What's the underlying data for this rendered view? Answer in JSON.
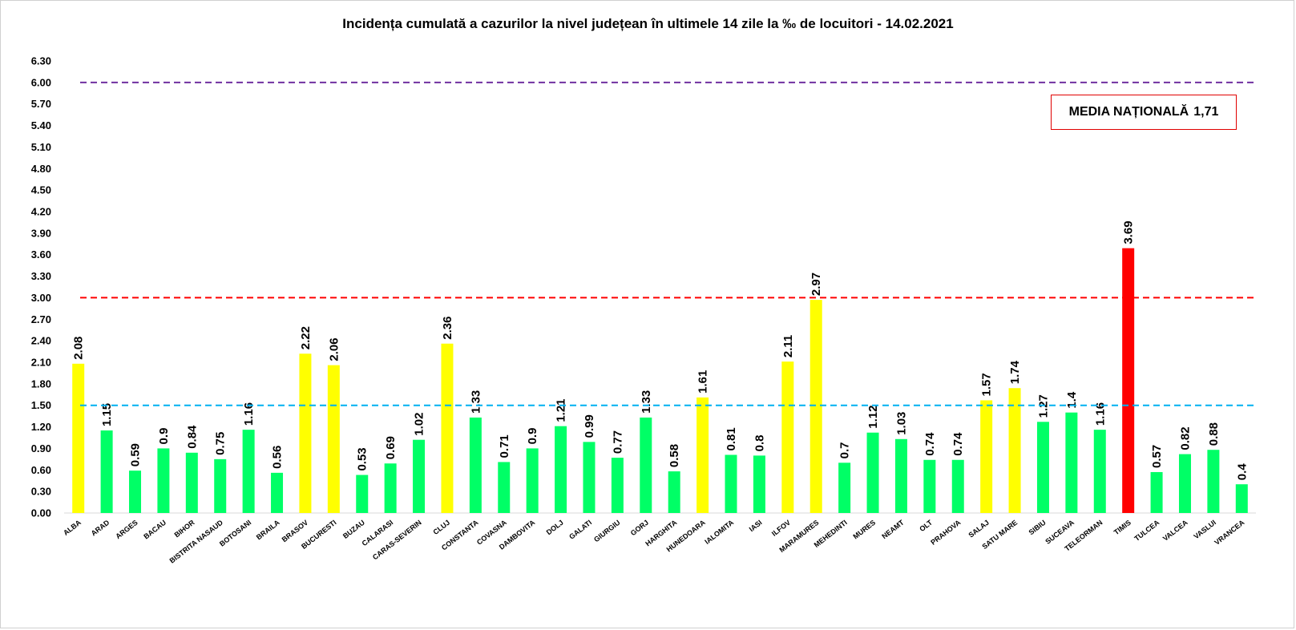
{
  "chart_data": {
    "type": "bar",
    "title": "Incidența cumulată a cazurilor la nivel județean în ultimele 14 zile la ‰ de locuitori - 14.02.2021",
    "xlabel": "",
    "ylabel": "",
    "ylim": [
      0,
      6.3
    ],
    "yticks": [
      "0.00",
      "0.30",
      "0.60",
      "0.90",
      "1.20",
      "1.50",
      "1.80",
      "2.10",
      "2.40",
      "2.70",
      "3.00",
      "3.30",
      "3.60",
      "3.90",
      "4.20",
      "4.50",
      "4.80",
      "5.10",
      "5.40",
      "5.70",
      "6.00",
      "6.30"
    ],
    "grid": false,
    "legend": "none",
    "categories": [
      "ALBA",
      "ARAD",
      "ARGES",
      "BACAU",
      "BIHOR",
      "BISTRITA NASAUD",
      "BOTOSANI",
      "BRAILA",
      "BRASOV",
      "BUCURESTI",
      "BUZAU",
      "CALARASI",
      "CARAS-SEVERIN",
      "CLUJ",
      "CONSTANTA",
      "COVASNA",
      "DAMBOVITA",
      "DOLJ",
      "GALATI",
      "GIURGIU",
      "GORJ",
      "HARGHITA",
      "HUNEDOARA",
      "IALOMITA",
      "IASI",
      "ILFOV",
      "MARAMURES",
      "MEHEDINTI",
      "MURES",
      "NEAMT",
      "OLT",
      "PRAHOVA",
      "SALAJ",
      "SATU MARE",
      "SIBIU",
      "SUCEAVA",
      "TELEORMAN",
      "TIMIS",
      "TULCEA",
      "VALCEA",
      "VASLUI",
      "VRANCEA"
    ],
    "values": [
      2.08,
      1.15,
      0.59,
      0.9,
      0.84,
      0.75,
      1.16,
      0.56,
      2.22,
      2.06,
      0.53,
      0.69,
      1.02,
      2.36,
      1.33,
      0.71,
      0.9,
      1.21,
      0.99,
      0.77,
      1.33,
      0.58,
      1.61,
      0.81,
      0.8,
      2.11,
      2.97,
      0.7,
      1.12,
      1.03,
      0.74,
      0.74,
      1.57,
      1.74,
      1.27,
      1.4,
      1.16,
      3.69,
      0.57,
      0.82,
      0.88,
      0.4
    ],
    "data_labels": [
      "2.08",
      "1.15",
      "0.59",
      "0.9",
      "0.84",
      "0.75",
      "1.16",
      "0.56",
      "2.22",
      "2.06",
      "0.53",
      "0.69",
      "1.02",
      "2.36",
      "1.33",
      "0.71",
      "0.9",
      "1.21",
      "0.99",
      "0.77",
      "1.33",
      "0.58",
      "1.61",
      "0.81",
      "0.8",
      "2.11",
      "2.97",
      "0.7",
      "1.12",
      "1.03",
      "0.74",
      "0.74",
      "1.57",
      "1.74",
      "1.27",
      "1.4",
      "1.16",
      "3.69",
      "0.57",
      "0.82",
      "0.88",
      "0.4"
    ],
    "bar_colors": [
      "#ffff00",
      "#00ff66",
      "#00ff66",
      "#00ff66",
      "#00ff66",
      "#00ff66",
      "#00ff66",
      "#00ff66",
      "#ffff00",
      "#ffff00",
      "#00ff66",
      "#00ff66",
      "#00ff66",
      "#ffff00",
      "#00ff66",
      "#00ff66",
      "#00ff66",
      "#00ff66",
      "#00ff66",
      "#00ff66",
      "#00ff66",
      "#00ff66",
      "#ffff00",
      "#00ff66",
      "#00ff66",
      "#ffff00",
      "#ffff00",
      "#00ff66",
      "#00ff66",
      "#00ff66",
      "#00ff66",
      "#00ff66",
      "#ffff00",
      "#ffff00",
      "#00ff66",
      "#00ff66",
      "#00ff66",
      "#ff0000",
      "#00ff66",
      "#00ff66",
      "#00ff66",
      "#00ff66"
    ],
    "reference_lines": [
      {
        "value": 6.0,
        "color": "#7030a0",
        "style": "dashed"
      },
      {
        "value": 3.0,
        "color": "#ff0000",
        "style": "dashed"
      },
      {
        "value": 1.5,
        "color": "#00b0f0",
        "style": "dashed"
      }
    ],
    "annotation": {
      "label": "MEDIA NAȚIONALĂ",
      "value": "1,71",
      "border_color": "#e00000"
    }
  }
}
